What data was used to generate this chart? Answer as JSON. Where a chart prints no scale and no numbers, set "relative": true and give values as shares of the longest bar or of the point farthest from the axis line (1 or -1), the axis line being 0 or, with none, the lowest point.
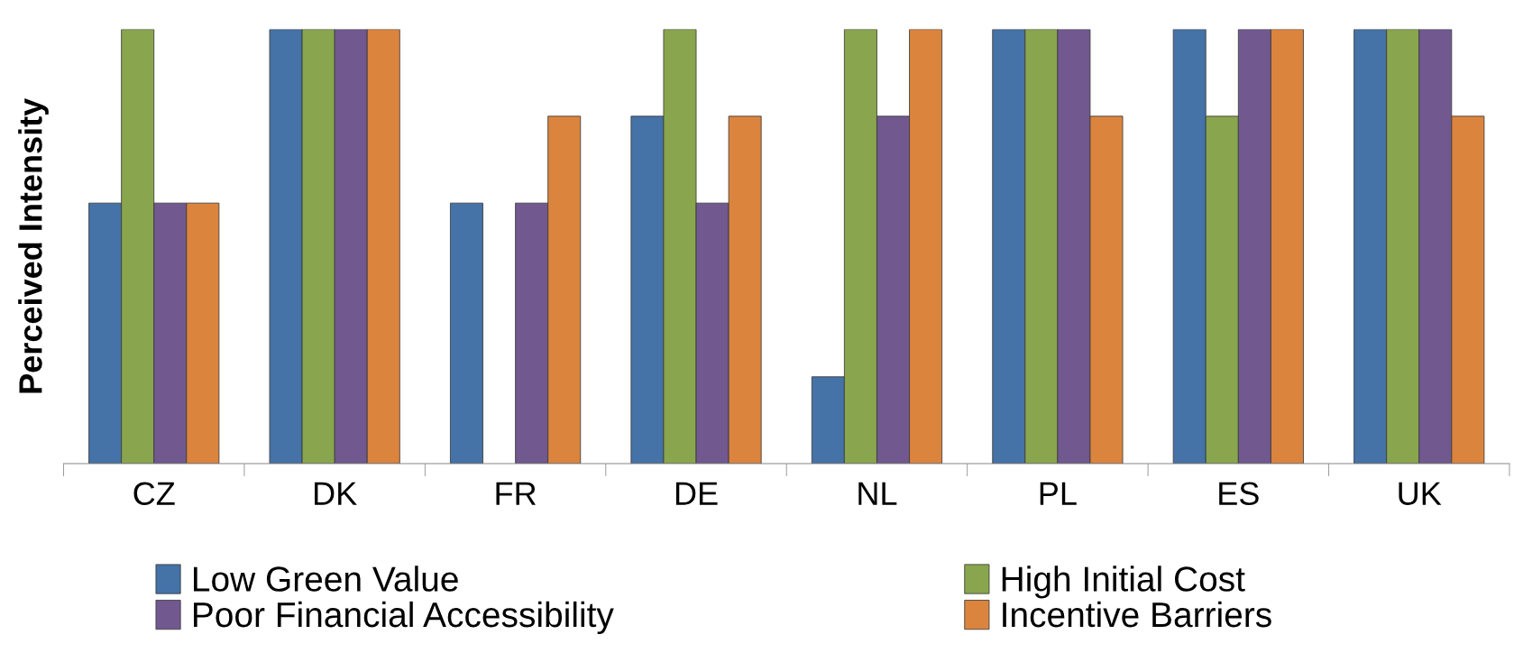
{
  "chart_data": {
    "type": "bar",
    "relative": true,
    "ylabel": "Perceived Intensity",
    "categories": [
      "CZ",
      "DK",
      "FR",
      "DE",
      "NL",
      "PL",
      "ES",
      "UK"
    ],
    "series": [
      {
        "name": "Low Green Value",
        "color": "#4572a7",
        "values": [
          0.6,
          1,
          0.6,
          0.8,
          0.2,
          1,
          1,
          1
        ]
      },
      {
        "name": "High Initial Cost",
        "color": "#89a54e",
        "values": [
          1,
          1,
          null,
          1,
          1,
          1,
          0.8,
          1
        ]
      },
      {
        "name": "Poor Financial Accessibility",
        "color": "#71588f",
        "values": [
          0.6,
          1,
          0.6,
          0.6,
          0.8,
          1,
          1,
          1
        ]
      },
      {
        "name": "Incentive Barriers",
        "color": "#db843d",
        "values": [
          0.6,
          1,
          0.8,
          0.8,
          1,
          0.8,
          1,
          0.8
        ]
      }
    ],
    "legend": "bottom",
    "grid": false
  }
}
